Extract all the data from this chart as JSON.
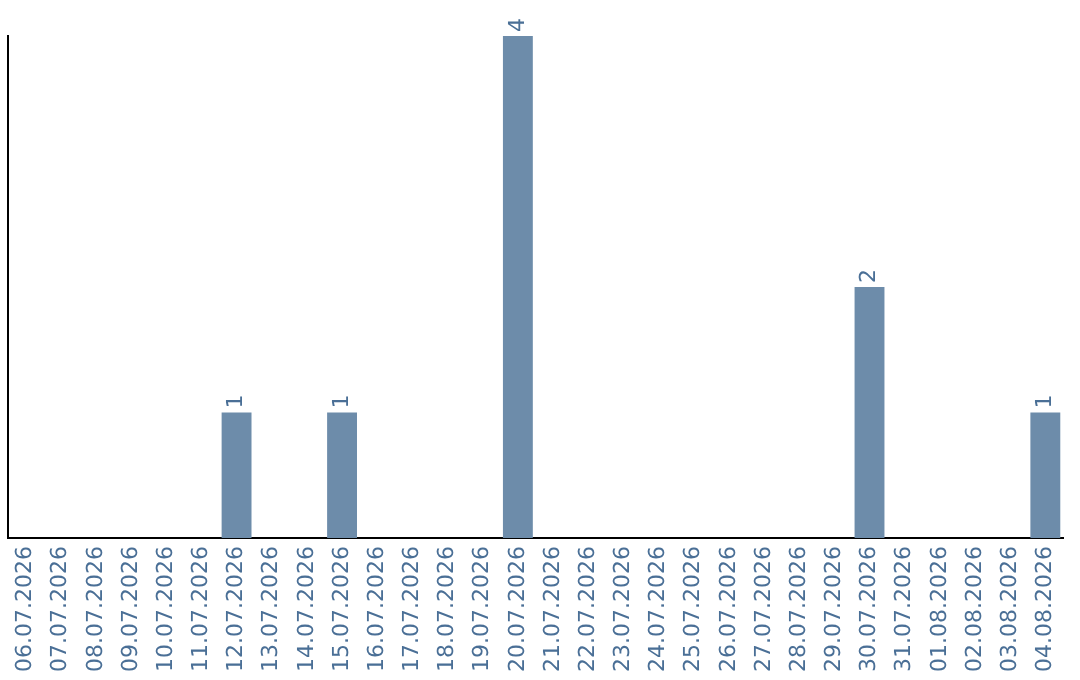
{
  "chart_data": {
    "type": "bar",
    "categories": [
      "06.07.2026",
      "07.07.2026",
      "08.07.2026",
      "09.07.2026",
      "10.07.2026",
      "11.07.2026",
      "12.07.2026",
      "13.07.2026",
      "14.07.2026",
      "15.07.2026",
      "16.07.2026",
      "17.07.2026",
      "18.07.2026",
      "19.07.2026",
      "20.07.2026",
      "21.07.2026",
      "22.07.2026",
      "23.07.2026",
      "24.07.2026",
      "25.07.2026",
      "26.07.2026",
      "27.07.2026",
      "28.07.2026",
      "29.07.2026",
      "30.07.2026",
      "31.07.2026",
      "01.08.2026",
      "02.08.2026",
      "03.08.2026",
      "04.08.2026"
    ],
    "values": [
      0,
      0,
      0,
      0,
      0,
      0,
      1,
      0,
      0,
      1,
      0,
      0,
      0,
      0,
      4,
      0,
      0,
      0,
      0,
      0,
      0,
      0,
      0,
      0,
      2,
      0,
      0,
      0,
      0,
      1
    ],
    "value_labels": [
      null,
      null,
      null,
      null,
      null,
      null,
      "1",
      null,
      null,
      "1",
      null,
      null,
      null,
      null,
      "4",
      null,
      null,
      null,
      null,
      null,
      null,
      null,
      null,
      null,
      "2",
      null,
      null,
      null,
      null,
      "1"
    ],
    "color": "#6d8caa",
    "tick_labels": "x",
    "grid": false,
    "legend": false
  }
}
